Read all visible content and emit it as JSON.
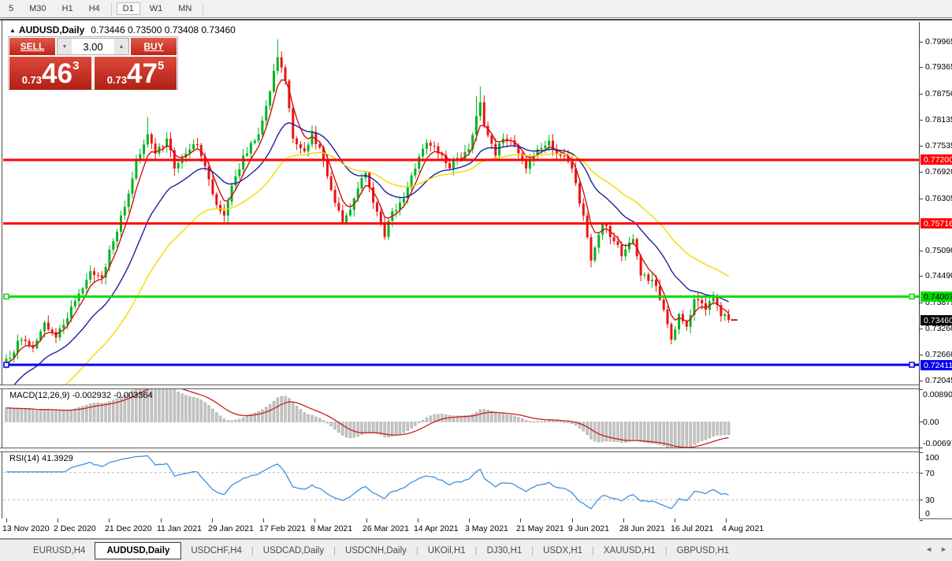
{
  "toolbar": {
    "items": [
      {
        "label": "5"
      },
      {
        "label": "M30"
      },
      {
        "label": "H1"
      },
      {
        "label": "H4"
      },
      {
        "sep": true
      },
      {
        "label": "D1",
        "active": true
      },
      {
        "label": "W1"
      },
      {
        "label": "MN"
      },
      {
        "sep": true
      }
    ]
  },
  "chart_title": {
    "symbol": "AUDUSD,Daily",
    "ohlc": "0.73446 0.73500 0.73408 0.73460"
  },
  "one_click": {
    "sell_label": "SELL",
    "buy_label": "BUY",
    "volume": "3.00",
    "spin_down_icon": "▼",
    "spin_up_icon": "▲",
    "sell_small": "0.73",
    "sell_big": "46",
    "sell_sup": "3",
    "buy_small": "0.73",
    "buy_big": "47",
    "buy_sup": "5"
  },
  "price_axis": {
    "ticks": [
      "0.79965",
      "0.79365",
      "0.78750",
      "0.78135",
      "0.77535",
      "0.76920",
      "0.76305",
      "0.75090",
      "0.74490",
      "0.73875",
      "0.73260",
      "0.72660",
      "0.72045"
    ],
    "badges": [
      {
        "text": "0.77200",
        "bg": "#ff0000",
        "fg": "#ffffff",
        "price": 0.772
      },
      {
        "text": "0.75716",
        "bg": "#ff0000",
        "fg": "#ffffff",
        "price": 0.75716
      },
      {
        "text": "0.74007",
        "bg": "#00dd00",
        "fg": "#000000",
        "price": 0.74007
      },
      {
        "text": "0.73460",
        "bg": "#000000",
        "fg": "#ffffff",
        "price": 0.7346
      },
      {
        "text": "0.72411",
        "bg": "#0000ee",
        "fg": "#ffffff",
        "price": 0.72411
      }
    ]
  },
  "macd_panel": {
    "label": "MACD(12,26,9) -0.002932 -0.003364",
    "axis": [
      {
        "text": "0.008903",
        "value": 0.008903
      },
      {
        "text": "0.00",
        "value": 0
      },
      {
        "text": "-0.006977",
        "value": -0.006977
      }
    ]
  },
  "rsi_panel": {
    "label": "RSI(14) 41.3929",
    "axis": [
      {
        "text": "100",
        "value": 100
      },
      {
        "text": "70",
        "value": 70
      },
      {
        "text": "30",
        "value": 30
      },
      {
        "text": "0",
        "value": 0
      }
    ],
    "levels": [
      70,
      30
    ]
  },
  "date_axis": [
    "13 Nov 2020",
    "2 Dec 2020",
    "21 Dec 2020",
    "11 Jan 2021",
    "29 Jan 2021",
    "17 Feb 2021",
    "8 Mar 2021",
    "26 Mar 2021",
    "14 Apr 2021",
    "3 May 2021",
    "21 May 2021",
    "9 Jun 2021",
    "28 Jun 2021",
    "16 Jul 2021",
    "4 Aug 2021"
  ],
  "tabs": {
    "items": [
      "EURUSD,H4",
      "AUDUSD,Daily",
      "USDCHF,H4",
      "USDCAD,Daily",
      "USDCNH,Daily",
      "UKOil,H1",
      "DJ30,H1",
      "USDX,H1",
      "XAUUSD,H1",
      "GBPUSD,H1"
    ],
    "active_index": 1,
    "scroll_left_icon": "◄",
    "scroll_right_icon": "►"
  },
  "chart_data": {
    "type": "candlestick",
    "symbol": "AUDUSD",
    "timeframe": "Daily",
    "current_bar": {
      "open": 0.73446,
      "high": 0.735,
      "low": 0.73408,
      "close": 0.7346
    },
    "y_axis_range": [
      0.71951,
      0.80423
    ],
    "num_candles": 190,
    "colors": {
      "up": "#00b422",
      "down": "#ee1111",
      "macd_hist": "#c4c4c4",
      "macd_signal": "#cc1d1d",
      "rsi_line": "#3d91e0",
      "ma_fast": "#d01010",
      "ma_medium": "#1f1f9e",
      "ma_slow": "#f2da00"
    },
    "anchors": [
      [
        0,
        0.7255
      ],
      [
        4,
        0.73
      ],
      [
        7,
        0.728
      ],
      [
        10,
        0.734
      ],
      [
        13,
        0.7305
      ],
      [
        18,
        0.739
      ],
      [
        22,
        0.746
      ],
      [
        25,
        0.7445
      ],
      [
        28,
        0.753
      ],
      [
        31,
        0.761
      ],
      [
        34,
        0.772
      ],
      [
        37,
        0.778
      ],
      [
        39,
        0.7735
      ],
      [
        42,
        0.777
      ],
      [
        44,
        0.77
      ],
      [
        47,
        0.7735
      ],
      [
        50,
        0.7755
      ],
      [
        54,
        0.764
      ],
      [
        57,
        0.759
      ],
      [
        59,
        0.766
      ],
      [
        62,
        0.773
      ],
      [
        66,
        0.778
      ],
      [
        69,
        0.788
      ],
      [
        71,
        0.796
      ],
      [
        73,
        0.7905
      ],
      [
        75,
        0.777
      ],
      [
        78,
        0.774
      ],
      [
        80,
        0.7785
      ],
      [
        83,
        0.772
      ],
      [
        85,
        0.765
      ],
      [
        88,
        0.7575
      ],
      [
        91,
        0.763
      ],
      [
        94,
        0.769
      ],
      [
        96,
        0.762
      ],
      [
        99,
        0.754
      ],
      [
        101,
        0.76
      ],
      [
        104,
        0.763
      ],
      [
        107,
        0.77
      ],
      [
        110,
        0.776
      ],
      [
        113,
        0.7735
      ],
      [
        116,
        0.77
      ],
      [
        118,
        0.7725
      ],
      [
        121,
        0.7745
      ],
      [
        124,
        0.7855
      ],
      [
        125,
        0.78
      ],
      [
        128,
        0.773
      ],
      [
        130,
        0.777
      ],
      [
        133,
        0.7755
      ],
      [
        136,
        0.77
      ],
      [
        139,
        0.7745
      ],
      [
        142,
        0.7765
      ],
      [
        145,
        0.773
      ],
      [
        148,
        0.77
      ],
      [
        151,
        0.759
      ],
      [
        153,
        0.7485
      ],
      [
        156,
        0.757
      ],
      [
        159,
        0.753
      ],
      [
        161,
        0.7495
      ],
      [
        164,
        0.7535
      ],
      [
        166,
        0.745
      ],
      [
        169,
        0.744
      ],
      [
        172,
        0.737
      ],
      [
        174,
        0.73
      ],
      [
        176,
        0.736
      ],
      [
        178,
        0.733
      ],
      [
        180,
        0.7395
      ],
      [
        183,
        0.737
      ],
      [
        185,
        0.74
      ],
      [
        187,
        0.7355
      ],
      [
        189,
        0.7346
      ]
    ],
    "spikes": {
      "37": {
        "high": 0.782
      },
      "71": {
        "high": 0.8002
      },
      "123": {
        "high": 0.787
      },
      "124": {
        "high": 0.7892
      },
      "174": {
        "low": 0.7289
      }
    },
    "moving_averages": [
      {
        "name": "fast",
        "period": 5,
        "color": "#d01010",
        "seed": 0.724
      },
      {
        "name": "medium",
        "period": 20,
        "color": "#1f1f9e",
        "seed": 0.717
      },
      {
        "name": "slow",
        "period": 40,
        "color": "#f2da00",
        "seed": 0.705
      }
    ],
    "horizontal_lines": [
      {
        "price": 0.772,
        "color": "#ff0000",
        "thickness": 3,
        "handles": false
      },
      {
        "price": 0.75716,
        "color": "#ff0000",
        "thickness": 3,
        "handles": false
      },
      {
        "price": 0.74007,
        "color": "#00dd00",
        "thickness": 3,
        "handles": true
      },
      {
        "price": 0.72411,
        "color": "#0000ee",
        "thickness": 3,
        "handles": true
      }
    ],
    "current_price": 0.7346,
    "macd": {
      "fast": 12,
      "slow": 26,
      "signal": 9,
      "value": -0.002932,
      "signal_value": -0.003364,
      "pane_max": 0.008903,
      "pane_min": -0.006977
    },
    "rsi": {
      "period": 14,
      "value": 41.3929,
      "levels": [
        30,
        70
      ],
      "range": [
        0,
        100
      ]
    }
  }
}
